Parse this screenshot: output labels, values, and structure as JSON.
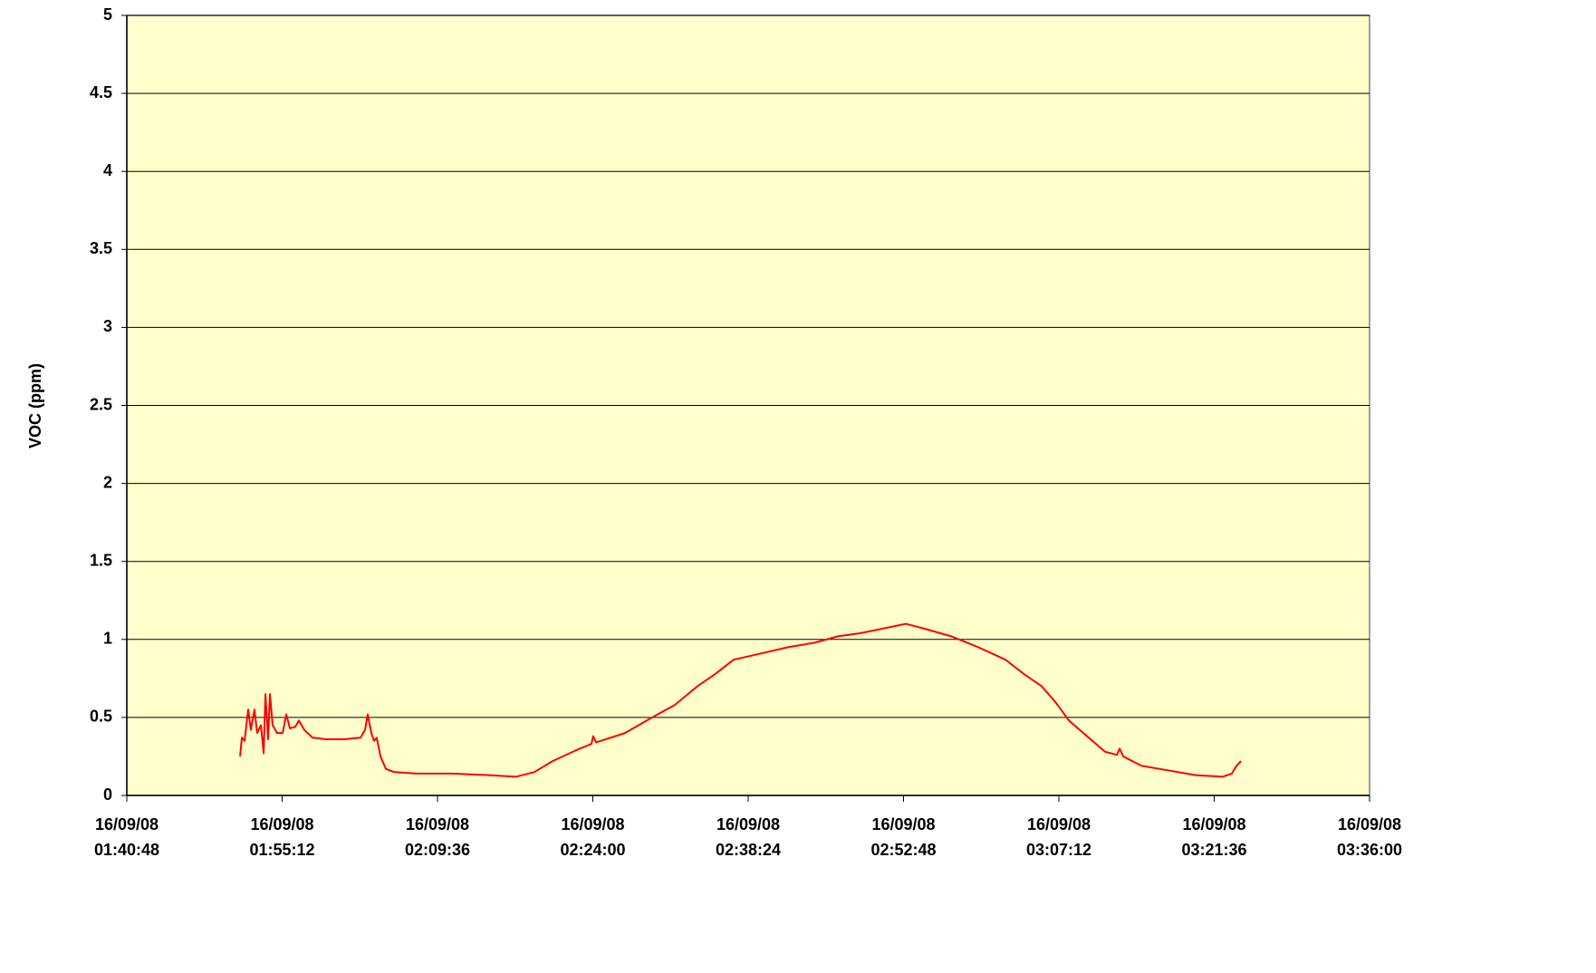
{
  "chart_data": {
    "type": "line",
    "y_label": "VOC (ppm)",
    "color": "#ff0000",
    "grid": true,
    "ylim": [
      0,
      5
    ],
    "yticks": [
      0,
      0.5,
      1,
      1.5,
      2,
      2.5,
      3,
      3.5,
      4,
      4.5,
      5
    ],
    "xlim": [
      "16/09/08 01:40:48",
      "16/09/08 03:36:00"
    ],
    "xticks": [
      "16/09/08 01:40:48",
      "16/09/08 01:55:12",
      "16/09/08 02:09:36",
      "16/09/08 02:24:00",
      "16/09/08 02:38:24",
      "16/09/08 02:52:48",
      "16/09/08 03:07:12",
      "16/09/08 03:21:36",
      "16/09/08 03:36:00"
    ],
    "x": [
      "16/09/08 01:51:18",
      "16/09/08 01:51:28",
      "16/09/08 01:51:43",
      "16/09/08 01:52:03",
      "16/09/08 01:52:18",
      "16/09/08 01:52:38",
      "16/09/08 01:52:53",
      "16/09/08 01:53:14",
      "16/09/08 01:53:29",
      "16/09/08 01:53:39",
      "16/09/08 01:53:54",
      "16/09/08 01:54:04",
      "16/09/08 01:54:19",
      "16/09/08 01:54:44",
      "16/09/08 01:55:15",
      "16/09/08 01:55:35",
      "16/09/08 01:55:55",
      "16/09/08 01:56:25",
      "16/09/08 01:56:45",
      "16/09/08 01:57:15",
      "16/09/08 01:58:01",
      "16/09/08 01:59:16",
      "16/09/08 02:00:57",
      "16/09/08 02:02:28",
      "16/09/08 02:02:53",
      "16/09/08 02:03:08",
      "16/09/08 02:03:28",
      "16/09/08 02:03:43",
      "16/09/08 02:03:58",
      "16/09/08 02:04:19",
      "16/09/08 02:04:49",
      "16/09/08 02:05:34",
      "16/09/08 02:07:40",
      "16/09/08 02:11:02",
      "16/09/08 02:14:23",
      "16/09/08 02:16:54",
      "16/09/08 02:18:35",
      "16/09/08 02:20:16",
      "16/09/08 02:22:47",
      "16/09/08 02:23:52",
      "16/09/08 02:24:02",
      "16/09/08 02:24:18",
      "16/09/08 02:26:59",
      "16/09/08 02:29:30",
      "16/09/08 02:31:36",
      "16/09/08 02:33:42",
      "16/09/08 02:35:23",
      "16/09/08 02:37:03",
      "16/09/08 02:39:35",
      "16/09/08 02:42:06",
      "16/09/08 02:44:37",
      "16/09/08 02:46:43",
      "16/09/08 02:48:49",
      "16/09/08 02:50:55",
      "16/09/08 02:53:01",
      "16/09/08 02:54:41",
      "16/09/08 02:57:13",
      "16/09/08 02:59:44",
      "16/09/08 03:02:15",
      "16/09/08 03:03:56",
      "16/09/08 03:05:36",
      "16/09/08 03:06:52",
      "16/09/08 03:08:08",
      "16/09/08 03:09:48",
      "16/09/08 03:11:29",
      "16/09/08 03:12:35",
      "16/09/08 03:12:50",
      "16/09/08 03:13:10",
      "16/09/08 03:14:51",
      "16/09/08 03:17:22",
      "16/09/08 03:19:53",
      "16/09/08 03:22:24",
      "16/09/08 03:23:14",
      "16/09/08 03:23:40",
      "16/09/08 03:24:05"
    ],
    "values": [
      0.25,
      0.37,
      0.35,
      0.55,
      0.42,
      0.55,
      0.4,
      0.45,
      0.27,
      0.65,
      0.36,
      0.65,
      0.45,
      0.4,
      0.4,
      0.52,
      0.43,
      0.44,
      0.48,
      0.42,
      0.37,
      0.36,
      0.36,
      0.37,
      0.42,
      0.52,
      0.4,
      0.35,
      0.37,
      0.25,
      0.17,
      0.15,
      0.14,
      0.14,
      0.13,
      0.12,
      0.15,
      0.22,
      0.3,
      0.33,
      0.38,
      0.34,
      0.4,
      0.5,
      0.58,
      0.7,
      0.78,
      0.87,
      0.91,
      0.95,
      0.98,
      1.02,
      1.04,
      1.07,
      1.1,
      1.07,
      1.02,
      0.95,
      0.87,
      0.78,
      0.7,
      0.6,
      0.48,
      0.38,
      0.28,
      0.26,
      0.3,
      0.25,
      0.19,
      0.16,
      0.13,
      0.12,
      0.14,
      0.19,
      0.22
    ]
  }
}
